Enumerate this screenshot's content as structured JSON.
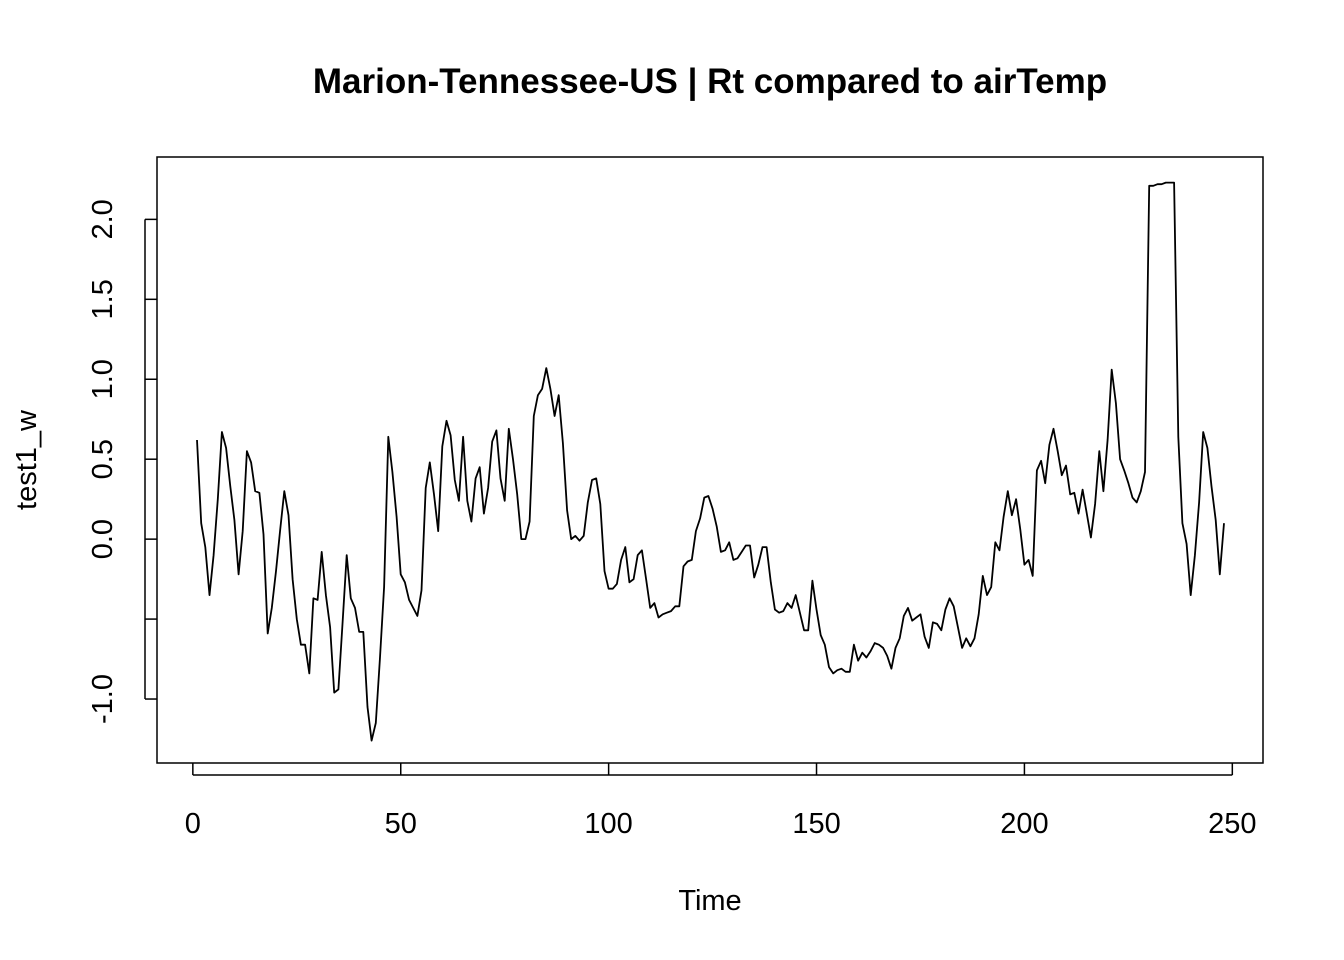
{
  "chart_data": {
    "type": "line",
    "title": "Marion-Tennessee-US | Rt compared to airTemp",
    "xlabel": "Time",
    "ylabel": "test1_w",
    "xlim": [
      1,
      248
    ],
    "ylim": [
      -1.25,
      2.24
    ],
    "x_ticks": [
      0,
      50,
      100,
      150,
      200,
      250
    ],
    "x_tick_labels": [
      "0",
      "50",
      "100",
      "150",
      "200",
      "250"
    ],
    "y_ticks": [
      -1.0,
      -0.5,
      0.0,
      0.5,
      1.0,
      1.5,
      2.0
    ],
    "y_tick_labels": [
      "-1.0",
      "",
      "0.0",
      "0.5",
      "1.0",
      "1.5",
      "2.0"
    ],
    "grid": false,
    "legend": "none",
    "line_color": "#000000",
    "series": [
      {
        "x": [
          1,
          2,
          3,
          4,
          5,
          6,
          7,
          8,
          9,
          10,
          11,
          12,
          13,
          14,
          15,
          16,
          17,
          18,
          19,
          20,
          21,
          22,
          23,
          24,
          25,
          26,
          27,
          28,
          29,
          30,
          31,
          32,
          33,
          34,
          35,
          36,
          37,
          38,
          39,
          40,
          41,
          42,
          43,
          44,
          45,
          46,
          47,
          48,
          49,
          50,
          51,
          52,
          53,
          54,
          55,
          56,
          57,
          58,
          59,
          60,
          61,
          62,
          63,
          64,
          65,
          66,
          67,
          68,
          69,
          70,
          71,
          72,
          73,
          74,
          75,
          76,
          77,
          78,
          79,
          80,
          81,
          82,
          83,
          84,
          85,
          86,
          87,
          88,
          89,
          90,
          91,
          92,
          93,
          94,
          95,
          96,
          97,
          98,
          99,
          100,
          101,
          102,
          103,
          104,
          105,
          106,
          107,
          108,
          109,
          110,
          111,
          112,
          113,
          114,
          115,
          116,
          117,
          118,
          119,
          120,
          121,
          122,
          123,
          124,
          125,
          126,
          127,
          128,
          129,
          130,
          131,
          132,
          133,
          134,
          135,
          136,
          137,
          138,
          139,
          140,
          141,
          142,
          143,
          144,
          145,
          146,
          147,
          148,
          149,
          150,
          151,
          152,
          153,
          154,
          155,
          156,
          157,
          158,
          159,
          160,
          161,
          162,
          163,
          164,
          165,
          166,
          167,
          168,
          169,
          170,
          171,
          172,
          173,
          174,
          175,
          176,
          177,
          178,
          179,
          180,
          181,
          182,
          183,
          184,
          185,
          186,
          187,
          188,
          189,
          190,
          191,
          192,
          193,
          194,
          195,
          196,
          197,
          198,
          199,
          200,
          201,
          202,
          203,
          204,
          205,
          206,
          207,
          208,
          209,
          210,
          211,
          212,
          213,
          214,
          215,
          216,
          217,
          218,
          219,
          220,
          221,
          222,
          223,
          224,
          225,
          226,
          227,
          228,
          229,
          230,
          231,
          232,
          233,
          234,
          235,
          236,
          237,
          238,
          239,
          240,
          241,
          242,
          243,
          244,
          245,
          246,
          247,
          248
        ],
        "values": [
          0.62,
          0.1,
          -0.05,
          -0.35,
          -0.1,
          0.25,
          0.67,
          0.57,
          0.33,
          0.12,
          -0.22,
          0.05,
          0.55,
          0.48,
          0.3,
          0.29,
          0.03,
          -0.59,
          -0.43,
          -0.2,
          0.06,
          0.3,
          0.15,
          -0.25,
          -0.5,
          -0.66,
          -0.66,
          -0.84,
          -0.37,
          -0.38,
          -0.08,
          -0.35,
          -0.55,
          -0.96,
          -0.94,
          -0.53,
          -0.1,
          -0.37,
          -0.43,
          -0.58,
          -0.58,
          -1.05,
          -1.26,
          -1.15,
          -0.75,
          -0.3,
          0.64,
          0.42,
          0.14,
          -0.22,
          -0.27,
          -0.38,
          -0.43,
          -0.48,
          -0.32,
          0.32,
          0.48,
          0.28,
          0.05,
          0.58,
          0.74,
          0.65,
          0.37,
          0.24,
          0.64,
          0.24,
          0.11,
          0.38,
          0.45,
          0.16,
          0.32,
          0.61,
          0.68,
          0.38,
          0.24,
          0.69,
          0.5,
          0.28,
          0.0,
          0.0,
          0.11,
          0.77,
          0.9,
          0.94,
          1.07,
          0.94,
          0.77,
          0.9,
          0.6,
          0.18,
          0.0,
          0.02,
          -0.01,
          0.02,
          0.23,
          0.37,
          0.38,
          0.22,
          -0.2,
          -0.31,
          -0.31,
          -0.28,
          -0.13,
          -0.05,
          -0.27,
          -0.25,
          -0.1,
          -0.07,
          -0.25,
          -0.43,
          -0.4,
          -0.49,
          -0.47,
          -0.46,
          -0.45,
          -0.42,
          -0.42,
          -0.17,
          -0.14,
          -0.13,
          0.05,
          0.13,
          0.26,
          0.27,
          0.19,
          0.08,
          -0.08,
          -0.07,
          -0.02,
          -0.13,
          -0.12,
          -0.08,
          -0.04,
          -0.04,
          -0.24,
          -0.16,
          -0.05,
          -0.05,
          -0.27,
          -0.44,
          -0.46,
          -0.45,
          -0.4,
          -0.43,
          -0.35,
          -0.46,
          -0.57,
          -0.57,
          -0.26,
          -0.44,
          -0.6,
          -0.66,
          -0.8,
          -0.84,
          -0.82,
          -0.81,
          -0.83,
          -0.83,
          -0.66,
          -0.76,
          -0.71,
          -0.74,
          -0.7,
          -0.65,
          -0.66,
          -0.68,
          -0.73,
          -0.81,
          -0.68,
          -0.62,
          -0.48,
          -0.43,
          -0.51,
          -0.49,
          -0.47,
          -0.61,
          -0.68,
          -0.52,
          -0.53,
          -0.57,
          -0.44,
          -0.37,
          -0.42,
          -0.55,
          -0.68,
          -0.62,
          -0.67,
          -0.62,
          -0.47,
          -0.23,
          -0.35,
          -0.3,
          -0.02,
          -0.07,
          0.14,
          0.3,
          0.15,
          0.25,
          0.06,
          -0.16,
          -0.13,
          -0.23,
          0.43,
          0.49,
          0.35,
          0.59,
          0.69,
          0.55,
          0.4,
          0.46,
          0.28,
          0.29,
          0.16,
          0.31,
          0.16,
          0.01,
          0.22,
          0.55,
          0.3,
          0.62,
          1.06,
          0.85,
          0.5,
          0.43,
          0.35,
          0.26,
          0.23,
          0.3,
          0.42,
          2.21,
          2.21,
          2.22,
          2.22,
          2.23,
          2.23,
          2.23,
          0.64,
          0.1,
          -0.03,
          -0.35,
          -0.1,
          0.23,
          0.67,
          0.57,
          0.33,
          0.12,
          -0.22,
          0.1
        ]
      }
    ]
  }
}
